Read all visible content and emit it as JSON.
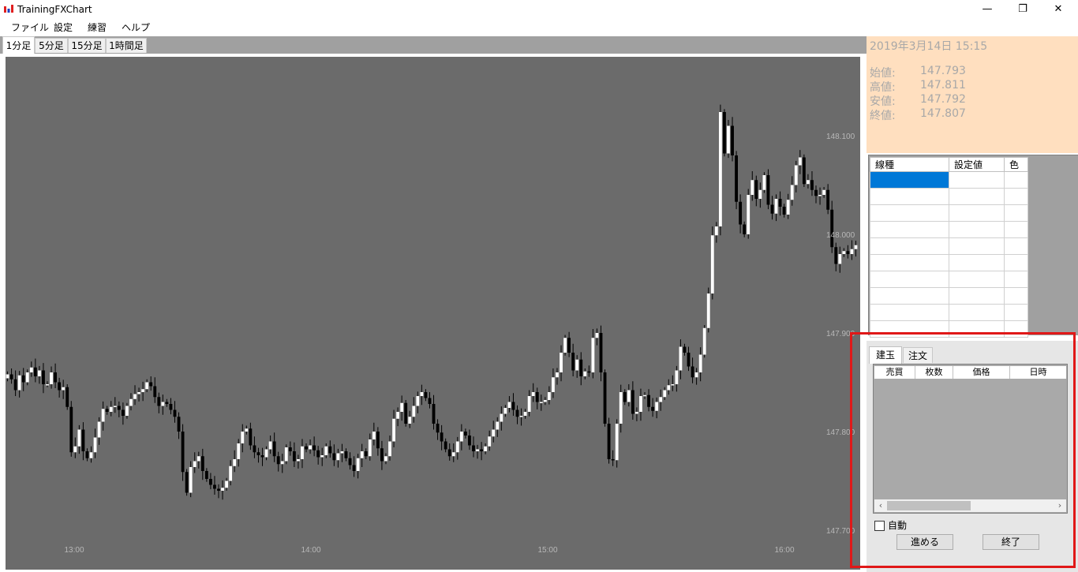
{
  "window": {
    "title": "TrainingFXChart",
    "minimize": "—",
    "maximize": "❐",
    "close": "✕"
  },
  "menu": [
    "ファイル",
    "設定",
    "練習",
    "ヘルプ"
  ],
  "timeframe_tabs": [
    "1分足",
    "5分足",
    "15分足",
    "1時間足"
  ],
  "info": {
    "datetime": "2019年3月14日  15:15",
    "rows": [
      {
        "label": "始値:",
        "value": "147.793"
      },
      {
        "label": "高値:",
        "value": "147.811"
      },
      {
        "label": "安値:",
        "value": "147.792"
      },
      {
        "label": "終値:",
        "value": "147.807"
      }
    ],
    "background": "#ffdfbf"
  },
  "indicator_table": {
    "headers": [
      "線種",
      "設定値",
      "色"
    ],
    "row_count": 10
  },
  "position_panel": {
    "tabs": [
      "建玉",
      "注文"
    ],
    "columns": [
      "売買",
      "枚数",
      "価格",
      "日時"
    ],
    "auto_label": "自動",
    "auto_checked": false,
    "advance_button": "進める",
    "end_button": "終了"
  },
  "chart_data": {
    "type": "candlestick",
    "y_ticks": [
      "148.100",
      "148.000",
      "147.900",
      "147.800",
      "147.700"
    ],
    "x_ticks": [
      "13:00",
      "14:00",
      "15:00",
      "16:00"
    ],
    "ylim": [
      147.66,
      148.18
    ],
    "background": "#6b6b6b",
    "up_color": "#ffffff",
    "down_color": "#000000",
    "closes": [
      147.858,
      147.853,
      147.842,
      147.857,
      147.85,
      147.86,
      147.865,
      147.856,
      147.862,
      147.848,
      147.848,
      147.86,
      147.85,
      147.842,
      147.845,
      147.825,
      147.779,
      147.785,
      147.802,
      147.78,
      147.773,
      147.779,
      147.794,
      147.81,
      147.823,
      147.82,
      147.825,
      147.826,
      147.822,
      147.816,
      147.826,
      147.833,
      147.838,
      147.84,
      147.843,
      147.85,
      147.846,
      147.835,
      147.826,
      147.83,
      147.828,
      147.822,
      147.815,
      147.8,
      147.759,
      147.738,
      147.764,
      147.77,
      147.775,
      147.76,
      147.752,
      147.746,
      147.742,
      147.74,
      147.743,
      147.75,
      147.765,
      147.772,
      147.788,
      147.8,
      147.803,
      147.786,
      147.779,
      147.776,
      147.774,
      147.782,
      147.79,
      147.775,
      147.767,
      147.77,
      147.784,
      147.78,
      147.77,
      147.772,
      147.785,
      147.782,
      147.786,
      147.781,
      147.774,
      147.776,
      147.785,
      147.778,
      147.771,
      147.778,
      147.78,
      147.773,
      147.766,
      147.76,
      147.773,
      147.78,
      147.775,
      147.792,
      147.8,
      147.783,
      147.77,
      147.775,
      147.79,
      147.813,
      147.82,
      147.829,
      147.808,
      147.815,
      147.826,
      147.836,
      147.84,
      147.834,
      147.828,
      147.808,
      147.799,
      147.79,
      147.782,
      147.775,
      147.779,
      147.79,
      147.8,
      147.796,
      147.786,
      147.78,
      147.782,
      147.78,
      147.785,
      147.795,
      147.802,
      147.81,
      147.818,
      147.824,
      147.83,
      147.822,
      147.815,
      147.816,
      147.82,
      147.836,
      147.84,
      147.83,
      147.83,
      147.832,
      147.84,
      147.855,
      147.86,
      147.88,
      147.895,
      147.88,
      147.862,
      147.873,
      147.856,
      147.861,
      147.86,
      147.895,
      147.9,
      147.86,
      147.808,
      147.772,
      147.771,
      147.808,
      147.84,
      147.83,
      147.842,
      147.818,
      147.82,
      147.836,
      147.837,
      147.825,
      147.821,
      147.83,
      147.835,
      147.842,
      147.847,
      147.848,
      147.862,
      147.886,
      147.88,
      147.866,
      147.855,
      147.86,
      147.878,
      147.905,
      147.94,
      147.999,
      148.008,
      148.124,
      148.082,
      148.11,
      148.08,
      148.033,
      148.01,
      148.0,
      148.04,
      148.055,
      148.036,
      148.045,
      148.06,
      148.03,
      148.021,
      148.036,
      148.028,
      148.02,
      148.035,
      148.05,
      148.07,
      148.078,
      148.051,
      148.055,
      148.045,
      148.039,
      148.04,
      148.045,
      148.025,
      147.987,
      147.97,
      147.98,
      147.983,
      147.98,
      147.985,
      147.989
    ]
  }
}
